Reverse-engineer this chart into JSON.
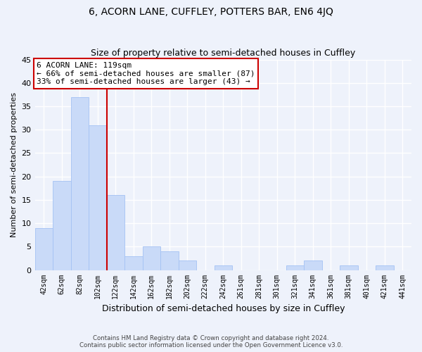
{
  "title": "6, ACORN LANE, CUFFLEY, POTTERS BAR, EN6 4JQ",
  "subtitle": "Size of property relative to semi-detached houses in Cuffley",
  "xlabel": "Distribution of semi-detached houses by size in Cuffley",
  "ylabel": "Number of semi-detached properties",
  "bar_labels": [
    "42sqm",
    "62sqm",
    "82sqm",
    "102sqm",
    "122sqm",
    "142sqm",
    "162sqm",
    "182sqm",
    "202sqm",
    "222sqm",
    "242sqm",
    "261sqm",
    "281sqm",
    "301sqm",
    "321sqm",
    "341sqm",
    "361sqm",
    "381sqm",
    "401sqm",
    "421sqm",
    "441sqm"
  ],
  "bar_values": [
    9,
    19,
    37,
    31,
    16,
    3,
    5,
    4,
    2,
    0,
    1,
    0,
    0,
    0,
    1,
    2,
    0,
    1,
    0,
    1,
    0
  ],
  "bar_color": "#c9daf8",
  "bar_edge_color": "#a4c2f4",
  "highlight_line_color": "#cc0000",
  "annotation_title": "6 ACORN LANE: 119sqm",
  "annotation_line1": "← 66% of semi-detached houses are smaller (87)",
  "annotation_line2": "33% of semi-detached houses are larger (43) →",
  "annotation_box_color": "#ffffff",
  "annotation_box_edge": "#cc0000",
  "ylim": [
    0,
    45
  ],
  "yticks": [
    0,
    5,
    10,
    15,
    20,
    25,
    30,
    35,
    40,
    45
  ],
  "background_color": "#eef2fb",
  "footer_line1": "Contains HM Land Registry data © Crown copyright and database right 2024.",
  "footer_line2": "Contains public sector information licensed under the Open Government Licence v3.0.",
  "grid_color": "#ffffff",
  "title_fontsize": 10,
  "subtitle_fontsize": 9
}
